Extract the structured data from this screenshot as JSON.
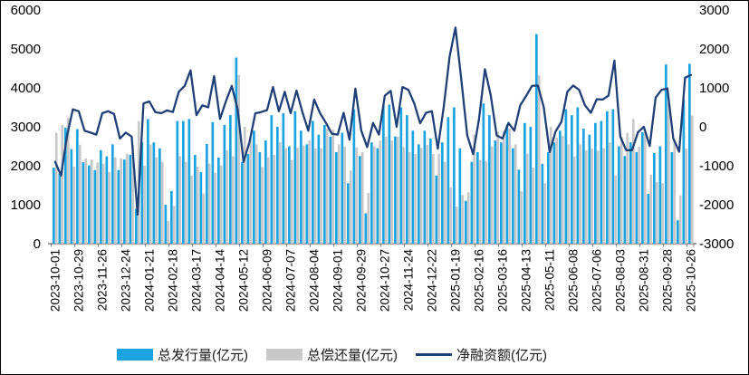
{
  "page": {
    "background": "#FFFFFF",
    "border_color": "#000000",
    "axis_text_color": "#000000"
  },
  "chart_data": {
    "type": "combo-bar-line",
    "title": "",
    "grid": false,
    "legend_position": "bottom",
    "left_axis": {
      "min": 0,
      "max": 6000,
      "ticks": [
        6000,
        5000,
        4000,
        3000,
        2000,
        1000,
        0
      ]
    },
    "right_axis": {
      "min": -3000,
      "max": 3000,
      "ticks": [
        3000,
        2000,
        1000,
        0,
        -1000,
        -2000,
        -3000
      ]
    },
    "x_tick_labels": [
      "2023-10-01",
      "2023-10-29",
      "2023-11-26",
      "2023-12-24",
      "2024-01-21",
      "2024-02-18",
      "2024-03-17",
      "2024-04-14",
      "2024-05-12",
      "2024-06-09",
      "2024-07-07",
      "2024-08-04",
      "2024-09-01",
      "2024-09-29",
      "2024-10-27",
      "2024-11-24",
      "2024-12-22",
      "2025-01-19",
      "2025-02-16",
      "2025-03-16",
      "2025-04-13",
      "2025-05-11",
      "2025-06-08",
      "2025-07-06",
      "2025-08-03",
      "2025-08-31",
      "2025-09-28",
      "2025-10-26"
    ],
    "x": [
      "2023-10-01",
      "2023-10-08",
      "2023-10-15",
      "2023-10-22",
      "2023-10-29",
      "2023-11-05",
      "2023-11-12",
      "2023-11-19",
      "2023-11-26",
      "2023-12-03",
      "2023-12-10",
      "2023-12-17",
      "2023-12-24",
      "2023-12-31",
      "2024-01-07",
      "2024-01-14",
      "2024-01-21",
      "2024-01-28",
      "2024-02-04",
      "2024-02-11",
      "2024-02-18",
      "2024-02-25",
      "2024-03-03",
      "2024-03-10",
      "2024-03-17",
      "2024-03-24",
      "2024-03-31",
      "2024-04-07",
      "2024-04-14",
      "2024-04-21",
      "2024-04-28",
      "2024-05-05",
      "2024-05-12",
      "2024-05-19",
      "2024-05-26",
      "2024-06-02",
      "2024-06-09",
      "2024-06-16",
      "2024-06-23",
      "2024-06-30",
      "2024-07-07",
      "2024-07-14",
      "2024-07-21",
      "2024-07-28",
      "2024-08-04",
      "2024-08-11",
      "2024-08-18",
      "2024-08-25",
      "2024-09-01",
      "2024-09-08",
      "2024-09-15",
      "2024-09-22",
      "2024-09-29",
      "2024-10-06",
      "2024-10-13",
      "2024-10-20",
      "2024-10-27",
      "2024-11-03",
      "2024-11-10",
      "2024-11-17",
      "2024-11-24",
      "2024-12-01",
      "2024-12-08",
      "2024-12-15",
      "2024-12-22",
      "2024-12-29",
      "2025-01-05",
      "2025-01-12",
      "2025-01-19",
      "2025-01-26",
      "2025-02-02",
      "2025-02-09",
      "2025-02-16",
      "2025-02-23",
      "2025-03-02",
      "2025-03-09",
      "2025-03-16",
      "2025-03-23",
      "2025-03-30",
      "2025-04-06",
      "2025-04-13",
      "2025-04-20",
      "2025-04-27",
      "2025-05-04",
      "2025-05-11",
      "2025-05-18",
      "2025-05-25",
      "2025-06-01",
      "2025-06-08",
      "2025-06-15",
      "2025-06-22",
      "2025-06-29",
      "2025-07-06",
      "2025-07-13",
      "2025-07-20",
      "2025-07-27",
      "2025-08-03",
      "2025-08-10",
      "2025-08-17",
      "2025-08-24",
      "2025-08-31",
      "2025-09-07",
      "2025-09-14",
      "2025-09-21",
      "2025-09-28",
      "2025-10-05",
      "2025-10-12",
      "2025-10-19",
      "2025-10-26"
    ],
    "series": [
      {
        "name": "总发行量(亿元)",
        "type": "bar",
        "axis": "left",
        "color": "#1BA3E2",
        "values": [
          1950,
          1800,
          2980,
          2430,
          2940,
          2090,
          2010,
          1890,
          2400,
          2240,
          2550,
          1890,
          2160,
          2280,
          900,
          2600,
          3200,
          2600,
          2450,
          1000,
          1350,
          3150,
          3150,
          3200,
          2280,
          1840,
          2560,
          3120,
          2210,
          3050,
          3300,
          4780,
          2100,
          2300,
          2900,
          2350,
          2650,
          3300,
          3000,
          3350,
          2500,
          3400,
          2900,
          2550,
          3150,
          2800,
          3050,
          2750,
          2350,
          2850,
          1550,
          3450,
          2250,
          780,
          2600,
          2450,
          3550,
          3570,
          2750,
          3500,
          3300,
          2900,
          2550,
          2900,
          2700,
          1750,
          2600,
          3250,
          3500,
          2450,
          1100,
          2100,
          2350,
          3600,
          3300,
          2650,
          2600,
          3050,
          2450,
          1900,
          3100,
          3000,
          5380,
          2050,
          2350,
          2600,
          2900,
          3450,
          3300,
          3500,
          2950,
          2800,
          3100,
          3150,
          3400,
          3450,
          2500,
          2250,
          2600,
          2350,
          2860,
          1280,
          2330,
          2500,
          4600,
          2350,
          600,
          3700,
          4620
        ]
      },
      {
        "name": "总偿还量(亿元)",
        "type": "bar",
        "axis": "left",
        "color": "#C8C8C8",
        "values": [
          2850,
          3050,
          3230,
          1980,
          2540,
          2190,
          2160,
          2090,
          2050,
          1840,
          2220,
          2190,
          2310,
          2530,
          3150,
          2000,
          2550,
          2220,
          2100,
          580,
          970,
          2250,
          2100,
          1750,
          1980,
          1290,
          2060,
          1820,
          2010,
          2400,
          2250,
          4330,
          3000,
          2700,
          2550,
          1970,
          2220,
          2280,
          2600,
          2450,
          2150,
          2470,
          2520,
          2650,
          2450,
          2450,
          2950,
          2930,
          2550,
          2490,
          1880,
          2470,
          2350,
          1300,
          2500,
          2650,
          2750,
          2650,
          2750,
          2480,
          2350,
          2300,
          2460,
          2540,
          2300,
          2310,
          2100,
          1450,
          950,
          1250,
          1320,
          2800,
          2150,
          2120,
          2500,
          2870,
          2900,
          2950,
          2550,
          1350,
          2310,
          1950,
          4320,
          1550,
          3000,
          2720,
          2770,
          2550,
          2240,
          2550,
          2400,
          2440,
          2390,
          2450,
          2600,
          1750,
          2750,
          2850,
          3200,
          2490,
          2860,
          1770,
          1580,
          1550,
          3615,
          2650,
          1240,
          2440,
          3290
        ]
      },
      {
        "name": "净融资额(亿元)",
        "type": "line",
        "axis": "right",
        "color": "#1F4077",
        "values": [
          -900,
          -1250,
          -250,
          450,
          400,
          -100,
          -150,
          -200,
          350,
          400,
          330,
          -300,
          -150,
          -250,
          -2250,
          600,
          650,
          380,
          350,
          420,
          380,
          900,
          1050,
          1450,
          300,
          550,
          500,
          1300,
          200,
          650,
          1050,
          450,
          -900,
          -400,
          350,
          380,
          430,
          1020,
          400,
          900,
          350,
          930,
          380,
          -100,
          700,
          350,
          100,
          -180,
          -200,
          360,
          -330,
          980,
          -100,
          -520,
          100,
          -200,
          800,
          920,
          0,
          1020,
          950,
          600,
          90,
          360,
          400,
          -560,
          500,
          1800,
          2550,
          1200,
          -220,
          -700,
          200,
          1480,
          800,
          -220,
          -300,
          100,
          -100,
          550,
          790,
          1050,
          1060,
          500,
          -650,
          -120,
          130,
          900,
          1060,
          950,
          550,
          360,
          710,
          700,
          800,
          1700,
          -250,
          -600,
          -600,
          -140,
          0,
          -490,
          750,
          950,
          985,
          -300,
          -640,
          1260,
          1330
        ]
      }
    ]
  }
}
